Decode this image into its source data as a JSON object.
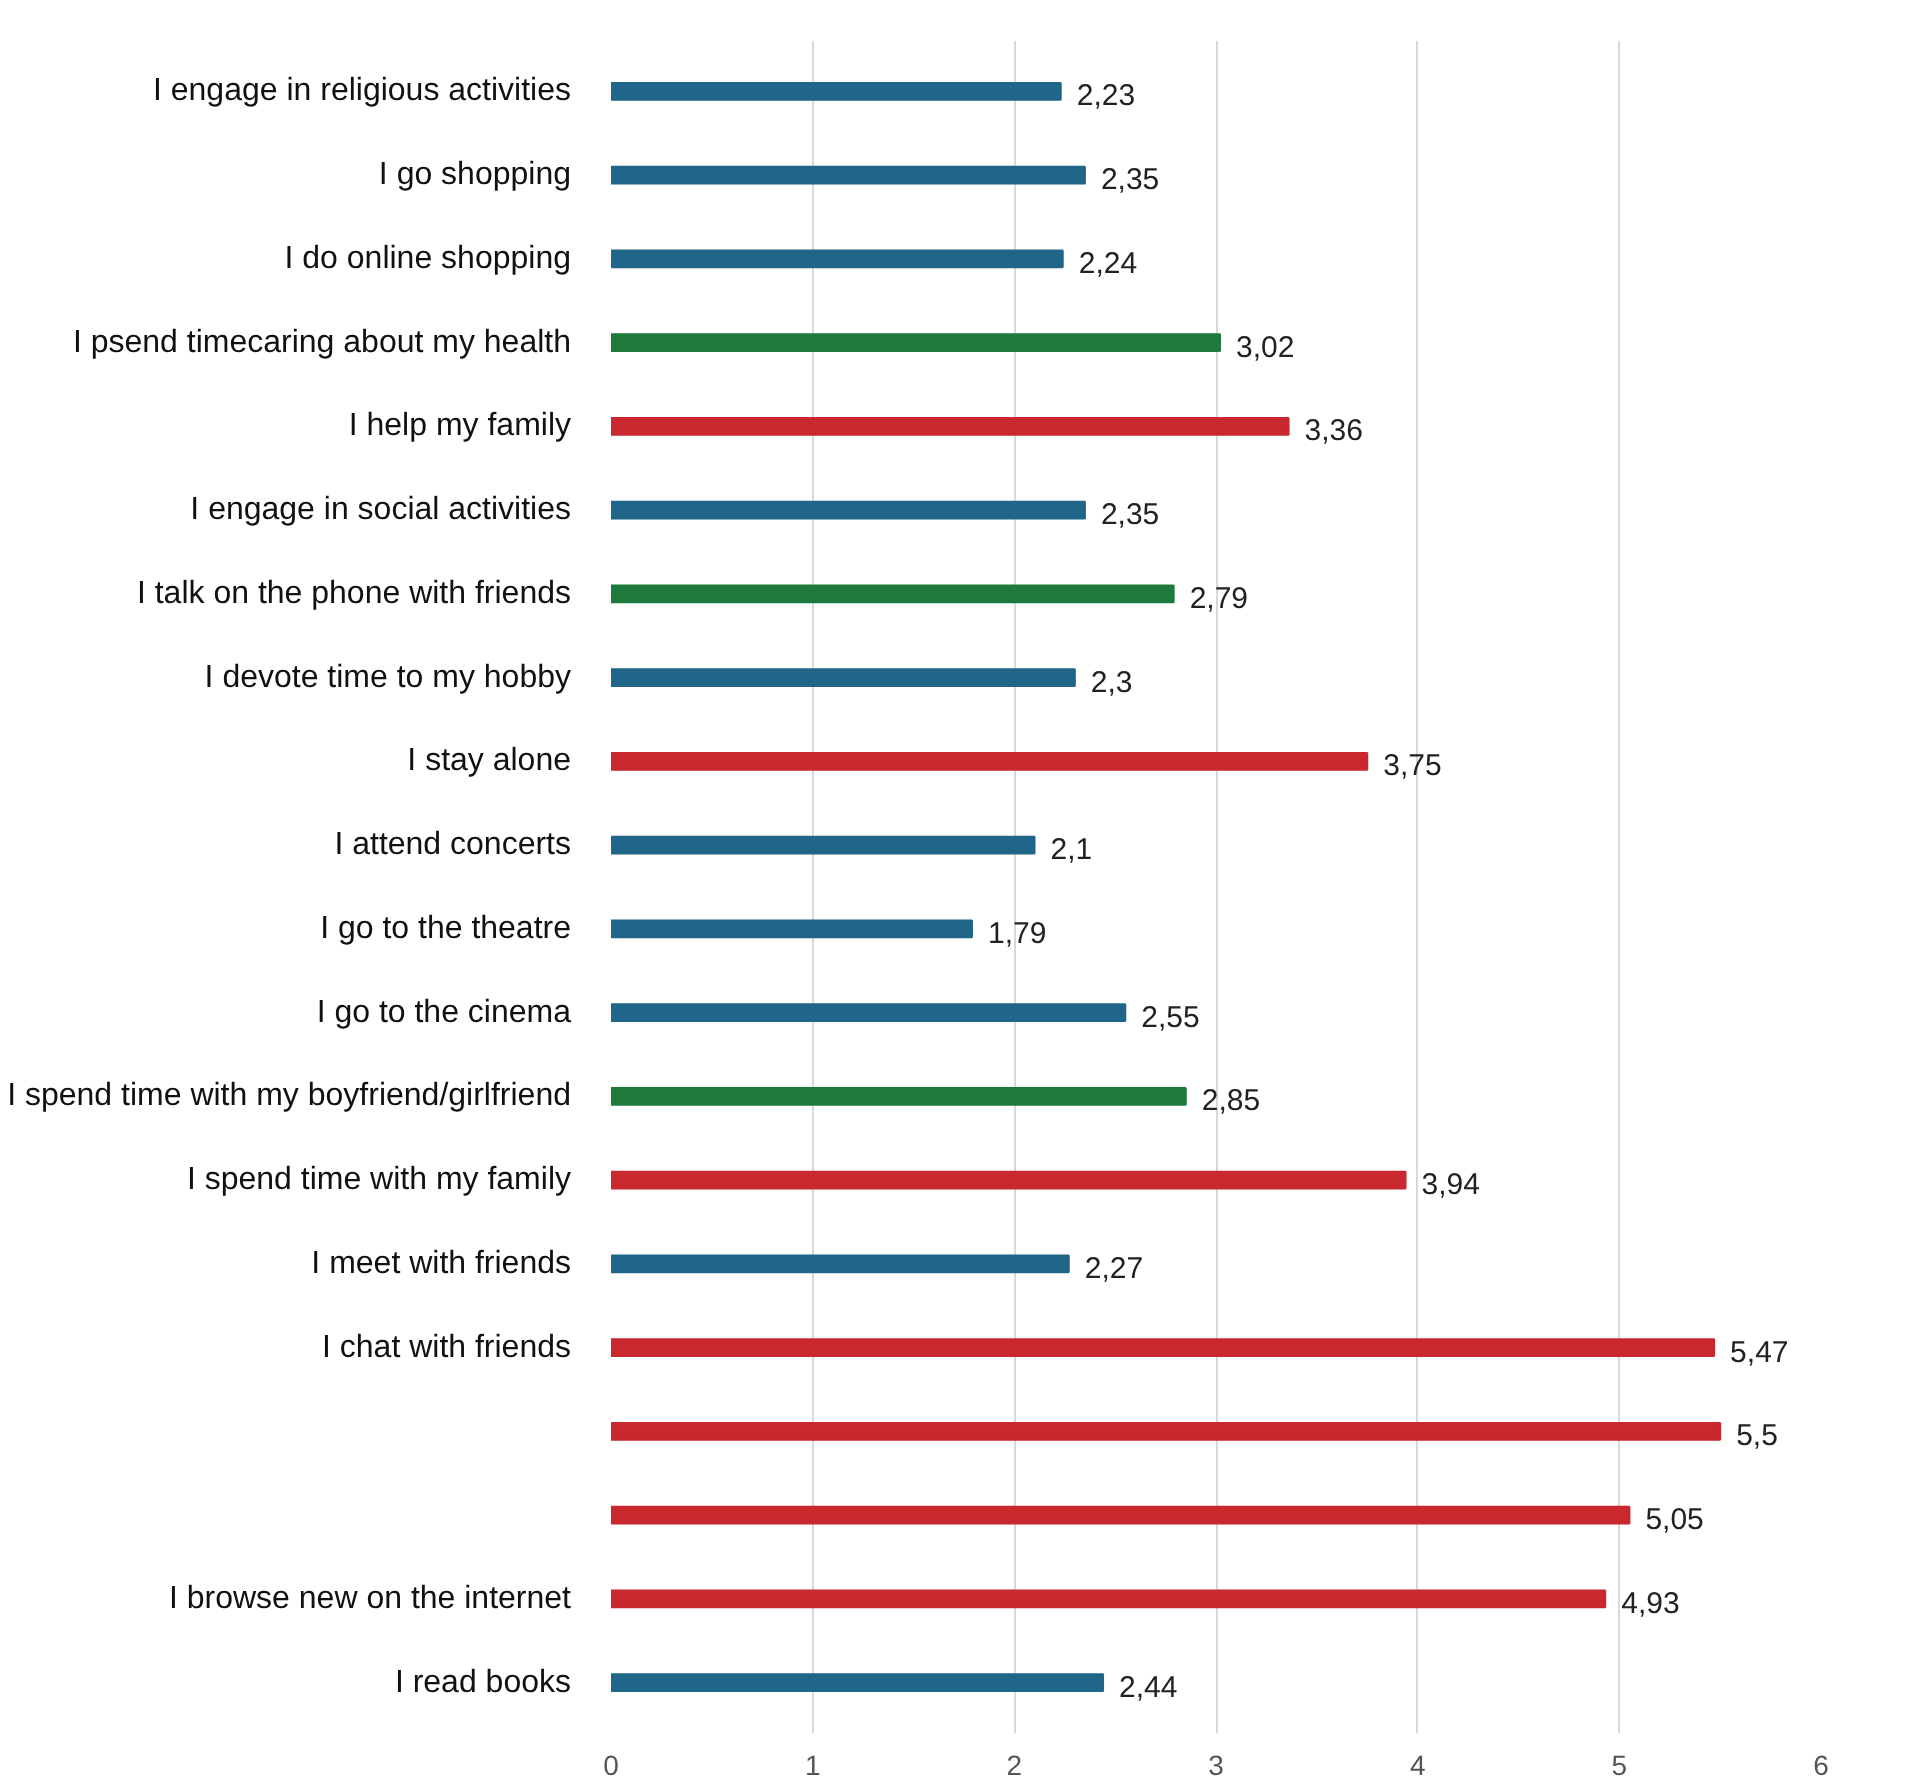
{
  "chart_data": {
    "type": "bar",
    "orientation": "horizontal",
    "categories": [
      "I engage in religious activities",
      "I go shopping",
      "I do online shopping",
      "I psend timecaring about my health",
      "I help my family",
      "I engage in social activities",
      "I talk on the phone with friends",
      "I devote time to my hobby",
      "I stay alone",
      "I attend concerts",
      "I go to the theatre",
      "I go to the cinema",
      "I spend time with my boyfriend/girlfriend",
      "I spend time with my family",
      "I meet with friends",
      "I chat with friends",
      null,
      null,
      "I browse new on the internet",
      "I read books"
    ],
    "values": [
      2.23,
      2.35,
      2.24,
      3.02,
      3.36,
      2.35,
      2.79,
      2.3,
      3.75,
      2.1,
      1.79,
      2.55,
      2.85,
      3.94,
      2.27,
      5.47,
      5.5,
      5.05,
      4.93,
      2.44
    ],
    "value_labels": [
      "2,23",
      "2,35",
      "2,24",
      "3,02",
      "3,36",
      "2,35",
      "2,79",
      "2,3",
      "3,75",
      "2,1",
      "1,79",
      "2,55",
      "2,85",
      "3,94",
      "2,27",
      "5,47",
      "5,5",
      "5,05",
      "4,93",
      "2,44"
    ],
    "colors": [
      "#1f6688",
      "#1f6688",
      "#1f6688",
      "#1e7a3c",
      "#c8282e",
      "#1f6688",
      "#1e7a3c",
      "#1f6688",
      "#c8282e",
      "#1f6688",
      "#1f6688",
      "#1f6688",
      "#1e7a3c",
      "#c8282e",
      "#1f6688",
      "#c8282e",
      "#c8282e",
      "#c8282e",
      "#c8282e",
      "#1f6688"
    ],
    "xlim": [
      0,
      6
    ],
    "xticks": [
      0,
      1,
      2,
      3,
      4,
      5,
      6
    ],
    "grid": "x"
  }
}
